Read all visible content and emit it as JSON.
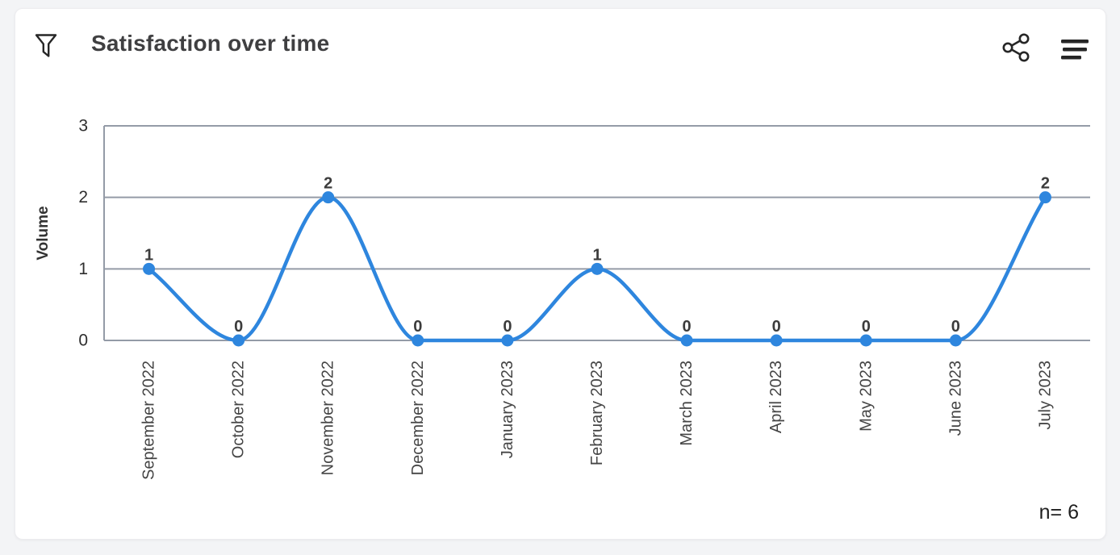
{
  "header": {
    "title": "Satisfaction over time"
  },
  "icons": {
    "filter": "filter-funnel-icon",
    "share": "share-icon",
    "menu": "menu-icon"
  },
  "footer": {
    "sample_size": "n= 6"
  },
  "colors": {
    "line": "#2e86de",
    "marker": "#2e86de",
    "gridline": "#949ba7",
    "axis": "#949ba7",
    "value_label": "#3c3c3c",
    "tick_label": "#2e2e2e",
    "x_label": "#454545",
    "card_bg": "#ffffff",
    "page_bg": "#f3f4f6"
  },
  "chart_data": {
    "type": "line",
    "title": "Satisfaction over time",
    "categories": [
      "September 2022",
      "October 2022",
      "November 2022",
      "December 2022",
      "January 2023",
      "February 2023",
      "March 2023",
      "April 2023",
      "May 2023",
      "June 2023",
      "July 2023"
    ],
    "values": [
      1,
      0,
      2,
      0,
      0,
      1,
      0,
      0,
      0,
      0,
      2
    ],
    "point_labels": [
      "1",
      "0",
      "2",
      "0",
      "0",
      "1",
      "0",
      "0",
      "0",
      "0",
      "2"
    ],
    "xlabel": "",
    "ylabel": "Volume",
    "ylim": [
      0,
      3
    ],
    "yticks": [
      0,
      1,
      2,
      3
    ],
    "grid": "horizontal-only",
    "legend": "none",
    "smooth": true,
    "sample_size": 6
  }
}
